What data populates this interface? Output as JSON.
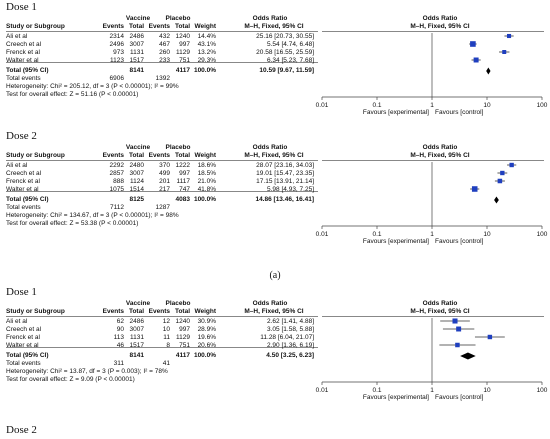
{
  "labels": {
    "study": "Study or Subgroup",
    "vaccine": "Vaccine",
    "placebo": "Placebo",
    "events": "Events",
    "total": "Total",
    "weight": "Weight",
    "odds_ratio": "Odds Ratio",
    "method": "M–H, Fixed, 95% CI",
    "total_row": "Total (95% CI)",
    "total_events": "Total events",
    "fav_exp": "Favours [experimental]",
    "fav_ctrl": "Favours [control]",
    "tick_labels": [
      "0.01",
      "0.1",
      "1",
      "10",
      "100"
    ]
  },
  "subcaption": "(a)",
  "panels": [
    {
      "title": "Dose 1",
      "studies": [
        {
          "name": "Ali et al",
          "ve": "2314",
          "vt": "2486",
          "pe": "432",
          "pt": "1240",
          "w": "14.4%",
          "ci": "25.16 [20.73, 30.55]",
          "or": 25.16,
          "lo": 20.73,
          "hi": 30.55,
          "wt": 14.4
        },
        {
          "name": "Creech et al",
          "ve": "2496",
          "vt": "3007",
          "pe": "467",
          "pt": "997",
          "w": "43.1%",
          "ci": "5.54 [4.74, 6.48]",
          "or": 5.54,
          "lo": 4.74,
          "hi": 6.48,
          "wt": 43.1
        },
        {
          "name": "Frenck et al",
          "ve": "973",
          "vt": "1131",
          "pe": "260",
          "pt": "1129",
          "w": "13.2%",
          "ci": "20.58 [16.55, 25.59]",
          "or": 20.58,
          "lo": 16.55,
          "hi": 25.59,
          "wt": 13.2
        },
        {
          "name": "Walter et al",
          "ve": "1123",
          "vt": "1517",
          "pe": "233",
          "pt": "751",
          "w": "29.3%",
          "ci": "6.34 [5.23, 7.68]",
          "or": 6.34,
          "lo": 5.23,
          "hi": 7.68,
          "wt": 29.3
        }
      ],
      "total": {
        "vt": "8141",
        "pt": "4117",
        "w": "100.0%",
        "ci": "10.59 [9.67, 11.59]",
        "or": 10.59,
        "lo": 9.67,
        "hi": 11.59
      },
      "events": {
        "v": "6906",
        "p": "1392"
      },
      "heterogeneity": "Heterogeneity: Chi² = 205.12, df = 3 (P < 0.00001); I² = 99%",
      "overall": "Test for overall effect: Z = 51.16 (P < 0.00001)"
    },
    {
      "title": "Dose 2",
      "studies": [
        {
          "name": "Ali et al",
          "ve": "2292",
          "vt": "2480",
          "pe": "370",
          "pt": "1222",
          "w": "18.6%",
          "ci": "28.07 [23.16, 34.03]",
          "or": 28.07,
          "lo": 23.16,
          "hi": 34.03,
          "wt": 18.6
        },
        {
          "name": "Creech et al",
          "ve": "2857",
          "vt": "3007",
          "pe": "499",
          "pt": "997",
          "w": "18.5%",
          "ci": "19.01 [15.47, 23.35]",
          "or": 19.01,
          "lo": 15.47,
          "hi": 23.35,
          "wt": 18.5
        },
        {
          "name": "Frenck et al",
          "ve": "888",
          "vt": "1124",
          "pe": "201",
          "pt": "1117",
          "w": "21.0%",
          "ci": "17.15 [13.91, 21.14]",
          "or": 17.15,
          "lo": 13.91,
          "hi": 21.14,
          "wt": 21.0
        },
        {
          "name": "Walter et al",
          "ve": "1075",
          "vt": "1514",
          "pe": "217",
          "pt": "747",
          "w": "41.8%",
          "ci": "5.98 [4.93, 7.25]",
          "or": 5.98,
          "lo": 4.93,
          "hi": 7.25,
          "wt": 41.8
        }
      ],
      "total": {
        "vt": "8125",
        "pt": "4083",
        "w": "100.0%",
        "ci": "14.86 [13.46, 16.41]",
        "or": 14.86,
        "lo": 13.46,
        "hi": 16.41
      },
      "events": {
        "v": "7112",
        "p": "1287"
      },
      "heterogeneity": "Heterogeneity: Chi² = 134.67, df = 3 (P < 0.00001); I² = 98%",
      "overall": "Test for overall effect: Z = 53.38 (P < 0.00001)"
    },
    {
      "title": "Dose 1",
      "studies": [
        {
          "name": "Ali et al",
          "ve": "62",
          "vt": "2486",
          "pe": "12",
          "pt": "1240",
          "w": "30.9%",
          "ci": "2.62 [1.41, 4.88]",
          "or": 2.62,
          "lo": 1.41,
          "hi": 4.88,
          "wt": 30.9
        },
        {
          "name": "Creech et al",
          "ve": "90",
          "vt": "3007",
          "pe": "10",
          "pt": "997",
          "w": "28.9%",
          "ci": "3.05 [1.58, 5.88]",
          "or": 3.05,
          "lo": 1.58,
          "hi": 5.88,
          "wt": 28.9
        },
        {
          "name": "Frenck et al",
          "ve": "113",
          "vt": "1131",
          "pe": "11",
          "pt": "1129",
          "w": "19.6%",
          "ci": "11.28 [6.04, 21.07]",
          "or": 11.28,
          "lo": 6.04,
          "hi": 21.07,
          "wt": 19.6
        },
        {
          "name": "Walter et al",
          "ve": "46",
          "vt": "1517",
          "pe": "8",
          "pt": "751",
          "w": "20.6%",
          "ci": "2.90 [1.36, 6.19]",
          "or": 2.9,
          "lo": 1.36,
          "hi": 6.19,
          "wt": 20.6
        }
      ],
      "total": {
        "vt": "8141",
        "pt": "4117",
        "w": "100.0%",
        "ci": "4.50 [3.25, 6.23]",
        "or": 4.5,
        "lo": 3.25,
        "hi": 6.23
      },
      "events": {
        "v": "311",
        "p": "41"
      },
      "heterogeneity": "Heterogeneity: Chi² = 13.87, df = 3 (P = 0.003); I² = 78%",
      "overall": "Test for overall effect: Z = 9.09 (P < 0.00001)"
    }
  ],
  "trailing_title": "Dose 2",
  "colors": {
    "square": "#1f3fbf",
    "line": "#333333"
  }
}
